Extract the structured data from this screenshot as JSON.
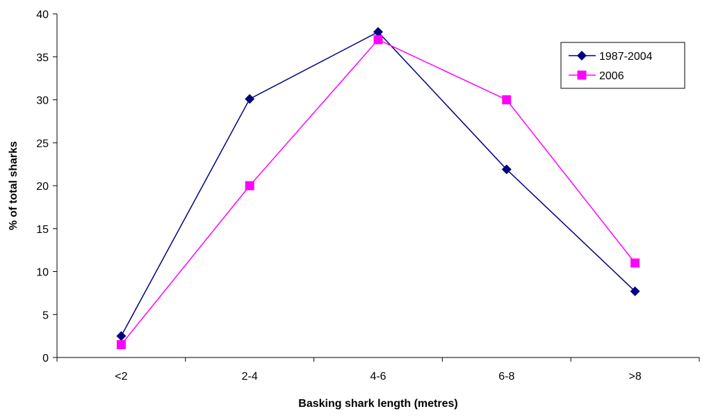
{
  "chart_data": {
    "type": "line",
    "title": "",
    "xlabel": "Basking shark length (metres)",
    "ylabel": "% of total sharks",
    "categories": [
      "<2",
      "2-4",
      "4-6",
      "6-8",
      ">8"
    ],
    "ylim": [
      0,
      40
    ],
    "yticks": [
      0,
      5,
      10,
      15,
      20,
      25,
      30,
      35,
      40
    ],
    "grid": false,
    "legend_position": "top-right",
    "series": [
      {
        "name": "1987-2004",
        "values": [
          2.5,
          30.1,
          37.9,
          21.9,
          7.7
        ],
        "color": "#000080",
        "marker": "diamond"
      },
      {
        "name": "2006",
        "values": [
          1.5,
          20.0,
          37.0,
          30.0,
          11.0
        ],
        "color": "#ff00ff",
        "marker": "square"
      }
    ]
  }
}
